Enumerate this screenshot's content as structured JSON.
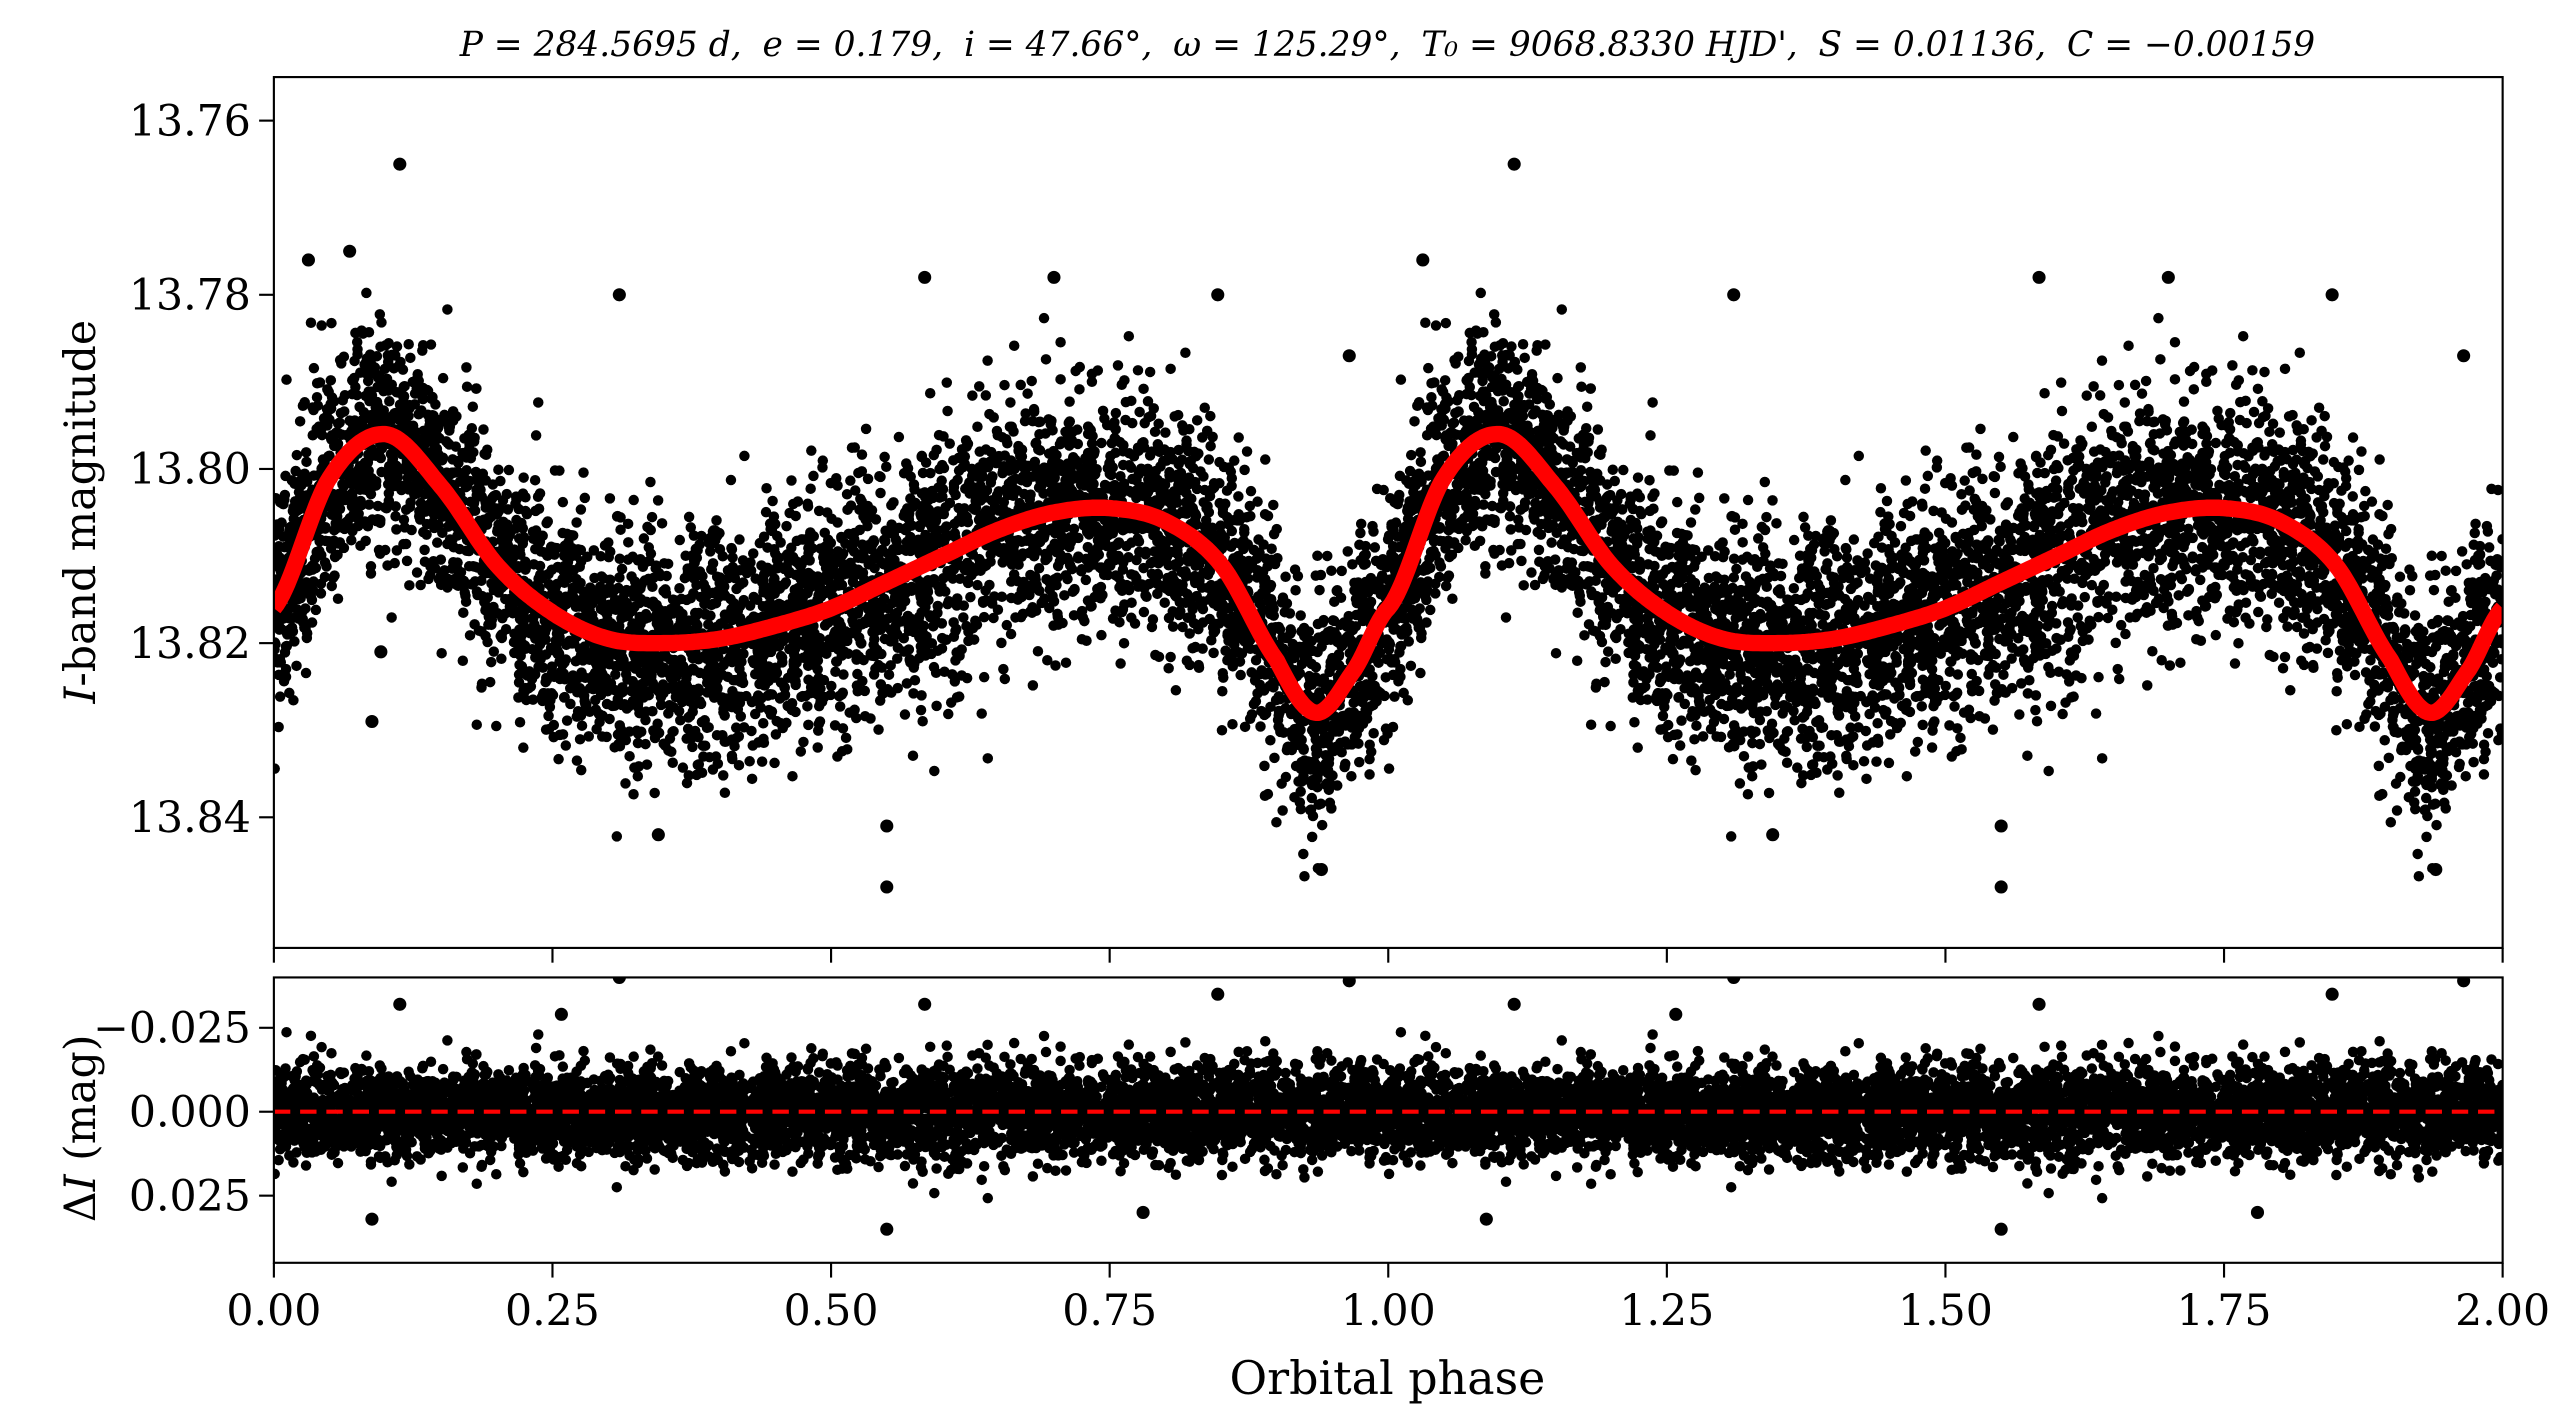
{
  "chart_data": [
    {
      "type": "scatter",
      "panel": "top",
      "title": {
        "P": "P = 284.5695 d,",
        "e": "e = 0.179,",
        "i": "i = 47.66°,",
        "omega": "ω = 125.29°,",
        "T0": "T₀ = 9068.8330 HJD',",
        "S": "S = 0.01136,",
        "C": "C = −0.00159"
      },
      "xlabel": "Orbital phase",
      "ylabel": "I-band magnitude",
      "ylabel_italic": "I",
      "ylabel_rest": "-band magnitude",
      "xlim": [
        0.0,
        2.0
      ],
      "ylim": [
        13.855,
        13.755
      ],
      "y_inverted": true,
      "yticks": [
        13.76,
        13.78,
        13.8,
        13.82,
        13.84
      ],
      "ytick_labels": [
        "13.76",
        "13.78",
        "13.80",
        "13.82",
        "13.84"
      ],
      "xticks": [
        0,
        0.25,
        0.5,
        0.75,
        1.0,
        1.25,
        1.5,
        1.75,
        2.0
      ],
      "point_color": "#000000",
      "model_color": "#ff0000",
      "model_phase": [
        0.0,
        0.05,
        0.1,
        0.15,
        0.2,
        0.25,
        0.3,
        0.35,
        0.4,
        0.45,
        0.5,
        0.55,
        0.6,
        0.65,
        0.7,
        0.75,
        0.8,
        0.85,
        0.9,
        0.935,
        0.97,
        1.0
      ],
      "model_mag": [
        13.816,
        13.801,
        13.796,
        13.802,
        13.811,
        13.8165,
        13.8195,
        13.82,
        13.8195,
        13.818,
        13.816,
        13.813,
        13.81,
        13.807,
        13.805,
        13.8045,
        13.806,
        13.811,
        13.822,
        13.828,
        13.823,
        13.816
      ],
      "scatter_density_note": "",
      "outliers": [
        {
          "x": 0.113,
          "y": 13.765
        },
        {
          "x": 0.031,
          "y": 13.776
        },
        {
          "x": 0.068,
          "y": 13.775
        },
        {
          "x": 0.31,
          "y": 13.78
        },
        {
          "x": 0.584,
          "y": 13.778
        },
        {
          "x": 0.7,
          "y": 13.778
        },
        {
          "x": 0.847,
          "y": 13.78
        },
        {
          "x": 0.55,
          "y": 13.848
        },
        {
          "x": 0.55,
          "y": 13.841
        },
        {
          "x": 1.113,
          "y": 13.765
        },
        {
          "x": 1.031,
          "y": 13.776
        },
        {
          "x": 1.31,
          "y": 13.78
        },
        {
          "x": 1.584,
          "y": 13.778
        },
        {
          "x": 1.7,
          "y": 13.778
        },
        {
          "x": 1.847,
          "y": 13.78
        },
        {
          "x": 1.55,
          "y": 13.848
        },
        {
          "x": 1.55,
          "y": 13.841
        },
        {
          "x": 0.096,
          "y": 13.821
        },
        {
          "x": 0.088,
          "y": 13.829
        },
        {
          "x": 0.94,
          "y": 13.846
        },
        {
          "x": 1.94,
          "y": 13.846
        },
        {
          "x": 0.965,
          "y": 13.787
        },
        {
          "x": 1.965,
          "y": 13.787
        },
        {
          "x": 0.345,
          "y": 13.842
        },
        {
          "x": 1.345,
          "y": 13.842
        }
      ]
    },
    {
      "type": "scatter",
      "panel": "bottom",
      "xlabel": "Orbital phase",
      "ylabel": "ΔI (mag)",
      "ylabel_delta": "Δ",
      "ylabel_italic": "I",
      "ylabel_rest": " (mag)",
      "xlim": [
        0.0,
        2.0
      ],
      "ylim": [
        0.045,
        -0.04
      ],
      "y_inverted": true,
      "yticks": [
        -0.025,
        0.0,
        0.025
      ],
      "ytick_labels": [
        "−0.025",
        "0.000",
        "0.025"
      ],
      "xticks": [
        0.0,
        0.25,
        0.5,
        0.75,
        1.0,
        1.25,
        1.5,
        1.75,
        2.0
      ],
      "xtick_labels": [
        "0.00",
        "0.25",
        "0.50",
        "0.75",
        "1.00",
        "1.25",
        "1.50",
        "1.75",
        "2.00"
      ],
      "zero_line": {
        "y": 0.0,
        "style": "dashed",
        "color": "#ff0000"
      },
      "point_color": "#000000",
      "residual_band": [
        -0.02,
        0.02
      ],
      "outliers": [
        {
          "x": 0.31,
          "y": -0.04
        },
        {
          "x": 1.31,
          "y": -0.04
        },
        {
          "x": 0.113,
          "y": -0.032
        },
        {
          "x": 1.113,
          "y": -0.032
        },
        {
          "x": 0.584,
          "y": -0.032
        },
        {
          "x": 1.584,
          "y": -0.032
        },
        {
          "x": 0.847,
          "y": -0.035
        },
        {
          "x": 1.847,
          "y": -0.035
        },
        {
          "x": 0.965,
          "y": -0.039
        },
        {
          "x": 1.965,
          "y": -0.039
        },
        {
          "x": 0.55,
          "y": 0.035
        },
        {
          "x": 1.55,
          "y": 0.035
        },
        {
          "x": 0.088,
          "y": 0.032
        },
        {
          "x": 1.088,
          "y": 0.032
        },
        {
          "x": 0.78,
          "y": 0.03
        },
        {
          "x": 1.78,
          "y": 0.03
        },
        {
          "x": 0.258,
          "y": -0.029
        },
        {
          "x": 1.258,
          "y": -0.029
        }
      ]
    }
  ]
}
